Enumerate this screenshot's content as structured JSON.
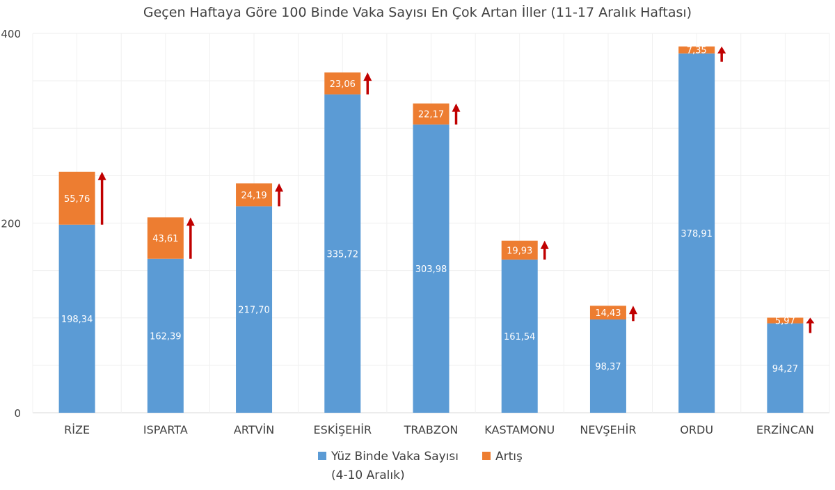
{
  "chart_data": {
    "type": "bar",
    "stacked": true,
    "title": "Geçen Haftaya Göre 100 Binde Vaka Sayısı En Çok Artan İller (11-17 Aralık Haftası)",
    "categories": [
      "RİZE",
      "ISPARTA",
      "ARTVİN",
      "ESKİŞEHİR",
      "TRABZON",
      "KASTAMONU",
      "NEVŞEHİR",
      "ORDU",
      "ERZİNCAN"
    ],
    "series": [
      {
        "name": "Yüz Binde Vaka Sayısı (4-10 Aralık)",
        "name_lines": [
          "Yüz Binde Vaka Sayısı",
          "(4-10 Aralık)"
        ],
        "color": "#5b9bd5",
        "values": [
          198.34,
          162.39,
          217.7,
          335.72,
          303.98,
          161.54,
          98.37,
          378.91,
          94.27
        ],
        "labels": [
          "198,34",
          "162,39",
          "217,70",
          "335,72",
          "303,98",
          "161,54",
          "98,37",
          "378,91",
          "94,27"
        ]
      },
      {
        "name": "Artış",
        "color": "#ed7d31",
        "values": [
          55.76,
          43.61,
          24.19,
          23.06,
          22.17,
          19.93,
          14.43,
          7.35,
          5.97
        ],
        "labels": [
          "55,76",
          "43,61",
          "24,19",
          "23,06",
          "22,17",
          "19,93",
          "14,43",
          "7,35",
          "5,97"
        ]
      }
    ],
    "arrow_color": "#c00000",
    "ylim": [
      0,
      400
    ],
    "yticks": [
      0,
      200,
      400
    ],
    "ytick_labels": [
      "0",
      "200",
      "400"
    ],
    "grid": true,
    "legend": "bottom"
  }
}
